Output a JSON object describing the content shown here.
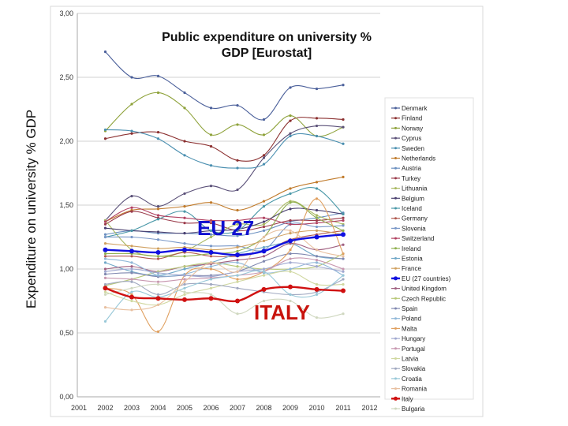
{
  "chart_data": {
    "type": "line",
    "title": "Public expenditure on university % GDP [Eurostat]",
    "title_lines": [
      "Public expenditure on university %",
      "GDP [Eurostat]"
    ],
    "ylabel": "Expenditure on university % GDP",
    "xlabel": "",
    "xlim": [
      2001,
      2012
    ],
    "ylim": [
      0,
      3
    ],
    "x_ticks": [
      "2001",
      "2002",
      "2003",
      "2004",
      "2005",
      "2006",
      "2007",
      "2008",
      "2009",
      "2010",
      "2011",
      "2012"
    ],
    "y_ticks": [
      "0,00",
      "0,50",
      "1,00",
      "1,50",
      "2,00",
      "2,50",
      "3,00"
    ],
    "grid": "horizontal",
    "legend_position": "right",
    "annotations": [
      {
        "text": "EU 27",
        "color": "#1010d0"
      },
      {
        "text": "ITALY",
        "color": "#c8120c"
      }
    ],
    "x": [
      2002,
      2003,
      2004,
      2005,
      2006,
      2007,
      2008,
      2009,
      2010,
      2011
    ],
    "series": [
      {
        "name": "Denmark",
        "color": "#4a5f9a",
        "values": [
          2.7,
          2.5,
          2.51,
          2.38,
          2.26,
          2.28,
          2.17,
          2.42,
          2.41,
          2.44
        ]
      },
      {
        "name": "Finland",
        "color": "#8b2f2f",
        "values": [
          2.02,
          2.06,
          2.07,
          2.0,
          1.96,
          1.85,
          1.89,
          2.16,
          2.18,
          2.17
        ]
      },
      {
        "name": "Norway",
        "color": "#8ea23a",
        "values": [
          2.08,
          2.29,
          2.38,
          2.26,
          2.05,
          2.13,
          2.05,
          2.2,
          2.04,
          2.11
        ]
      },
      {
        "name": "Cyprus",
        "color": "#5a5078",
        "values": [
          1.38,
          1.57,
          1.49,
          1.59,
          1.65,
          1.62,
          1.87,
          2.06,
          2.12,
          2.11
        ]
      },
      {
        "name": "Sweden",
        "color": "#4a8fb0",
        "values": [
          2.09,
          2.08,
          2.02,
          1.89,
          1.81,
          1.79,
          1.82,
          2.04,
          2.04,
          1.98
        ]
      },
      {
        "name": "Netherlands",
        "color": "#c07a2a",
        "values": [
          1.37,
          1.46,
          1.47,
          1.49,
          1.52,
          1.46,
          1.53,
          1.63,
          1.68,
          1.72
        ]
      },
      {
        "name": "Austria",
        "color": "#6a8fc0",
        "values": [
          1.27,
          1.3,
          1.28,
          1.28,
          1.27,
          1.26,
          1.3,
          1.37,
          1.4,
          1.44
        ]
      },
      {
        "name": "Turkey",
        "color": "#9a3a4a",
        "values": [
          1.35,
          1.45,
          1.4,
          1.36,
          1.36,
          1.3,
          1.33,
          1.38,
          1.38,
          1.4
        ]
      },
      {
        "name": "Lithuania",
        "color": "#a8b860",
        "values": [
          1.38,
          1.15,
          1.1,
          1.14,
          1.25,
          1.35,
          1.35,
          1.53,
          1.42,
          1.35
        ]
      },
      {
        "name": "Belgium",
        "color": "#4a4070",
        "values": [
          1.32,
          1.3,
          1.29,
          1.28,
          1.3,
          1.31,
          1.37,
          1.47,
          1.46,
          1.43
        ]
      },
      {
        "name": "Iceland",
        "color": "#4a98a8",
        "values": [
          1.25,
          1.3,
          1.39,
          1.45,
          1.3,
          1.3,
          1.49,
          1.59,
          1.63,
          1.43
        ]
      },
      {
        "name": "Germany",
        "color": "#b05a50",
        "values": [
          1.1,
          1.1,
          1.08,
          1.13,
          1.1,
          1.1,
          1.14,
          1.23,
          1.27,
          1.3
        ]
      },
      {
        "name": "Slovenia",
        "color": "#7a98c8",
        "values": [
          1.25,
          1.25,
          1.23,
          1.2,
          1.18,
          1.18,
          1.15,
          1.35,
          1.33,
          1.34
        ]
      },
      {
        "name": "Switzerland",
        "color": "#b04060",
        "values": [
          1.37,
          1.48,
          1.42,
          1.4,
          1.38,
          1.38,
          1.4,
          1.35,
          1.36,
          1.38
        ]
      },
      {
        "name": "Ireland",
        "color": "#90b050",
        "values": [
          1.12,
          1.12,
          1.1,
          1.1,
          1.12,
          1.14,
          1.25,
          1.52,
          1.4,
          1.3
        ]
      },
      {
        "name": "Estonia",
        "color": "#70a8c8",
        "values": [
          1.05,
          0.98,
          0.95,
          1.0,
          1.05,
          1.12,
          1.17,
          1.2,
          1.1,
          1.08
        ]
      },
      {
        "name": "France",
        "color": "#d0a060",
        "values": [
          1.2,
          1.18,
          1.16,
          1.17,
          1.15,
          1.17,
          1.22,
          1.28,
          1.3,
          1.27
        ]
      },
      {
        "name": "EU (27 countries)",
        "color": "#1010e0",
        "values": [
          1.15,
          1.14,
          1.13,
          1.15,
          1.13,
          1.11,
          1.14,
          1.22,
          1.25,
          1.27
        ]
      },
      {
        "name": "United Kingdom",
        "color": "#a06080",
        "values": [
          1.0,
          1.02,
          0.98,
          1.02,
          1.04,
          1.07,
          1.1,
          1.2,
          1.15,
          1.19
        ]
      },
      {
        "name": "Czech Republic",
        "color": "#b8c878",
        "values": [
          0.87,
          0.92,
          0.98,
          1.02,
          1.05,
          1.02,
          1.0,
          1.0,
          1.02,
          1.12
        ]
      },
      {
        "name": "Spain",
        "color": "#8088b0",
        "values": [
          0.96,
          0.97,
          0.94,
          0.95,
          0.95,
          0.98,
          1.06,
          1.12,
          1.1,
          1.08
        ]
      },
      {
        "name": "Poland",
        "color": "#90b8d8",
        "values": [
          1.08,
          1.05,
          0.95,
          0.96,
          1.02,
          1.05,
          0.97,
          1.0,
          1.05,
          0.95
        ]
      },
      {
        "name": "Malta",
        "color": "#e0a060",
        "values": [
          0.85,
          0.8,
          0.51,
          0.95,
          1.0,
          0.92,
          0.98,
          1.15,
          1.55,
          1.12
        ]
      },
      {
        "name": "Hungary",
        "color": "#a0a8d0",
        "values": [
          0.98,
          1.0,
          0.97,
          0.95,
          0.94,
          0.98,
          1.0,
          1.05,
          1.02,
          0.98
        ]
      },
      {
        "name": "Portugal",
        "color": "#c898b0",
        "values": [
          0.93,
          0.92,
          0.9,
          0.92,
          0.93,
          0.95,
          0.98,
          1.08,
          1.07,
          1.0
        ]
      },
      {
        "name": "Latvia",
        "color": "#d0d8a0",
        "values": [
          0.82,
          0.75,
          0.72,
          0.8,
          0.85,
          0.9,
          0.95,
          0.98,
          0.88,
          0.88
        ]
      },
      {
        "name": "Slovakia",
        "color": "#a0a8c0",
        "values": [
          0.88,
          0.9,
          0.8,
          0.88,
          0.88,
          0.85,
          0.82,
          0.8,
          0.82,
          0.92
        ]
      },
      {
        "name": "Croatia",
        "color": "#98c8d8",
        "values": [
          0.59,
          0.82,
          0.78,
          0.85,
          0.92,
          0.95,
          0.98,
          0.8,
          0.8,
          0.95
        ]
      },
      {
        "name": "Romania",
        "color": "#e8c0a0",
        "values": [
          0.7,
          0.68,
          0.72,
          0.9,
          1.05,
          0.98,
          1.25,
          1.3,
          1.15,
          1.1
        ]
      },
      {
        "name": "Italy",
        "color": "#d01010",
        "values": [
          0.85,
          0.78,
          0.77,
          0.76,
          0.77,
          0.75,
          0.84,
          0.86,
          0.84,
          0.83
        ]
      },
      {
        "name": "Bulgaria",
        "color": "#d0d8c0",
        "values": [
          0.8,
          0.85,
          0.88,
          0.82,
          0.8,
          0.65,
          0.75,
          0.75,
          0.62,
          0.65
        ]
      }
    ]
  }
}
